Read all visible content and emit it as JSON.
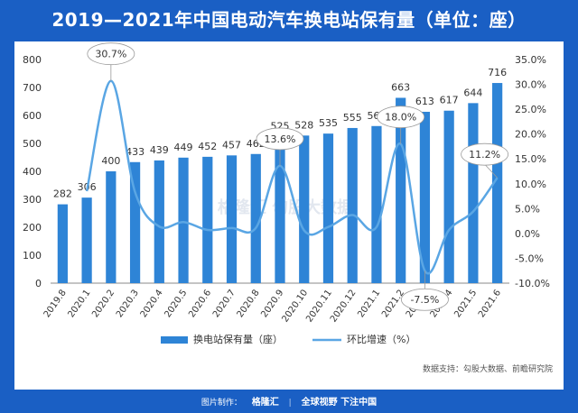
{
  "header": {
    "title": "2019—2021年中国电动汽车换电站保有量（单位：座）"
  },
  "chart_data": {
    "type": "bar",
    "title": "2019—2021年中国电动汽车换电站保有量（单位：座）",
    "categories": [
      "2019.8",
      "2020.1",
      "2020.2",
      "2020.3",
      "2020.4",
      "2020.5",
      "2020.6",
      "2020.7",
      "2020.8",
      "2020.9",
      "2020.10",
      "2020.11",
      "2020.12",
      "2021.1",
      "2021.2",
      "2021.3",
      "2021.4",
      "2021.5",
      "2021.6"
    ],
    "series": [
      {
        "name": "换电站保有量（座）",
        "type": "bar",
        "axis": "left",
        "values": [
          282,
          306,
          400,
          433,
          439,
          449,
          452,
          457,
          462,
          525,
          528,
          535,
          555,
          562,
          663,
          613,
          617,
          644,
          716
        ]
      },
      {
        "name": "环比增速（%）",
        "type": "line",
        "axis": "right",
        "values": [
          null,
          8.5,
          30.7,
          8.3,
          1.4,
          2.3,
          0.7,
          1.1,
          1.1,
          13.6,
          0.6,
          1.3,
          3.7,
          1.3,
          18.0,
          -7.5,
          0.7,
          4.4,
          11.2
        ]
      }
    ],
    "y_left": {
      "ylim": [
        0,
        800
      ],
      "ticks": [
        "0",
        "100",
        "200",
        "300",
        "400",
        "500",
        "600",
        "700",
        "800"
      ]
    },
    "y_right": {
      "ylim": [
        -10,
        35
      ],
      "ticks": [
        "-10.0%",
        "-5.0%",
        "0.0%",
        "5.0%",
        "10.0%",
        "15.0%",
        "20.0%",
        "25.0%",
        "30.0%",
        "35.0%"
      ]
    },
    "callouts": [
      {
        "index": 2,
        "label": "30.7%"
      },
      {
        "index": 9,
        "label": "13.6%"
      },
      {
        "index": 14,
        "label": "18.0%"
      },
      {
        "index": 15,
        "label": "-7.5%"
      },
      {
        "index": 18,
        "label": "11.2%"
      }
    ],
    "grid": false,
    "legend_position": "bottom",
    "colors": {
      "bar": "#2e84d6",
      "line": "#5aa6e4",
      "axis_text": "#333333"
    }
  },
  "source_note": "数据支持：勾股大数据、前瞻研究院",
  "watermark": "格隆汇 勾股大数据",
  "footer": {
    "made_by": "图片制作：",
    "brand": "格隆汇",
    "slogan": "全球视野 下注中国"
  }
}
